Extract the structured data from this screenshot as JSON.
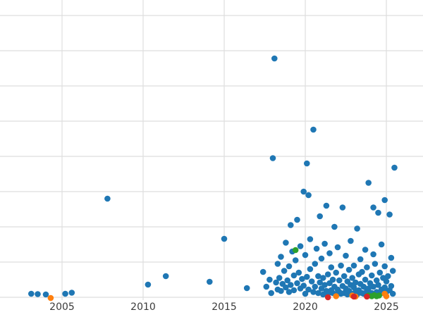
{
  "chart_data": {
    "type": "scatter",
    "title": "",
    "xlabel": "",
    "ylabel": "",
    "grid": true,
    "legend": "none",
    "axes": {
      "xlim": [
        2001.174,
        2027.26
      ],
      "ylim": [
        -0.08,
        8.44
      ],
      "x_ticks": [
        {
          "value": 2005,
          "label": "2005"
        },
        {
          "value": 2010,
          "label": "2010"
        },
        {
          "value": 2015,
          "label": "2015"
        },
        {
          "value": 2020,
          "label": "2020"
        },
        {
          "value": 2025,
          "label": "2025"
        }
      ],
      "y_gridline_values": [
        0,
        1,
        2,
        3,
        4,
        5,
        6,
        7,
        8
      ],
      "y_tick_labels_visible": false
    },
    "style": {
      "gridline_color": "#dedede",
      "background_color": "#ffffff",
      "marker_radius": 4.3,
      "tick_label_color": "#3b3b3b"
    },
    "series": [
      {
        "name": "blue",
        "color": "#1f77b4",
        "points": [
          [
            2003.1,
            0.1
          ],
          [
            2003.5,
            0.09
          ],
          [
            2004.0,
            0.08
          ],
          [
            2005.2,
            0.1
          ],
          [
            2005.6,
            0.13
          ],
          [
            2007.8,
            2.8
          ],
          [
            2010.3,
            0.36
          ],
          [
            2011.4,
            0.6
          ],
          [
            2014.1,
            0.44
          ],
          [
            2015.0,
            1.66
          ],
          [
            2016.4,
            0.26
          ],
          [
            2017.4,
            0.72
          ],
          [
            2017.6,
            0.3
          ],
          [
            2017.8,
            0.5
          ],
          [
            2017.9,
            0.12
          ],
          [
            2018.0,
            3.95
          ],
          [
            2018.1,
            6.78
          ],
          [
            2018.2,
            0.42
          ],
          [
            2018.3,
            0.22
          ],
          [
            2018.3,
            0.95
          ],
          [
            2018.4,
            0.55
          ],
          [
            2018.5,
            0.18
          ],
          [
            2018.5,
            1.15
          ],
          [
            2018.6,
            0.38
          ],
          [
            2018.7,
            0.75
          ],
          [
            2018.8,
            0.28
          ],
          [
            2018.8,
            1.55
          ],
          [
            2018.9,
            0.48
          ],
          [
            2019.0,
            0.15
          ],
          [
            2019.0,
            0.88
          ],
          [
            2019.1,
            2.05
          ],
          [
            2019.1,
            0.35
          ],
          [
            2019.2,
            1.3
          ],
          [
            2019.3,
            0.62
          ],
          [
            2019.3,
            0.2
          ],
          [
            2019.4,
            1.05
          ],
          [
            2019.5,
            2.2
          ],
          [
            2019.5,
            0.4
          ],
          [
            2019.6,
            0.7
          ],
          [
            2019.7,
            1.45
          ],
          [
            2019.7,
            0.25
          ],
          [
            2019.8,
            0.52
          ],
          [
            2019.9,
            3.0
          ],
          [
            2019.9,
            0.33
          ],
          [
            2020.0,
            1.2
          ],
          [
            2020.0,
            0.1
          ],
          [
            2020.1,
            3.8
          ],
          [
            2020.1,
            0.58
          ],
          [
            2020.2,
            2.9
          ],
          [
            2020.2,
            0.22
          ],
          [
            2020.3,
            0.8
          ],
          [
            2020.3,
            1.65
          ],
          [
            2020.4,
            0.45
          ],
          [
            2020.5,
            4.76
          ],
          [
            2020.5,
            0.15
          ],
          [
            2020.6,
            0.95
          ],
          [
            2020.6,
            0.3
          ],
          [
            2020.7,
            1.38
          ],
          [
            2020.8,
            0.6
          ],
          [
            2020.8,
            0.12
          ],
          [
            2020.9,
            2.3
          ],
          [
            2020.9,
            0.42
          ],
          [
            2021.0,
            0.25
          ],
          [
            2021.0,
            1.1
          ],
          [
            2021.1,
            0.55
          ],
          [
            2021.1,
            0.08
          ],
          [
            2021.2,
            0.35
          ],
          [
            2021.2,
            1.52
          ],
          [
            2021.3,
            2.6
          ],
          [
            2021.3,
            0.18
          ],
          [
            2021.4,
            0.65
          ],
          [
            2021.4,
            0.1
          ],
          [
            2021.5,
            0.4
          ],
          [
            2021.5,
            1.25
          ],
          [
            2021.6,
            0.2
          ],
          [
            2021.6,
            0.85
          ],
          [
            2021.7,
            0.12
          ],
          [
            2021.7,
            0.5
          ],
          [
            2021.8,
            2.0
          ],
          [
            2021.8,
            0.3
          ],
          [
            2021.9,
            0.08
          ],
          [
            2021.9,
            0.7
          ],
          [
            2022.0,
            0.22
          ],
          [
            2022.0,
            1.42
          ],
          [
            2022.1,
            0.15
          ],
          [
            2022.1,
            0.48
          ],
          [
            2022.2,
            0.9
          ],
          [
            2022.2,
            0.1
          ],
          [
            2022.3,
            2.55
          ],
          [
            2022.3,
            0.32
          ],
          [
            2022.4,
            0.6
          ],
          [
            2022.4,
            0.12
          ],
          [
            2022.5,
            1.18
          ],
          [
            2022.5,
            0.25
          ],
          [
            2022.6,
            0.45
          ],
          [
            2022.6,
            0.08
          ],
          [
            2022.7,
            0.78
          ],
          [
            2022.7,
            0.18
          ],
          [
            2022.8,
            1.6
          ],
          [
            2022.8,
            0.35
          ],
          [
            2022.9,
            0.1
          ],
          [
            2022.9,
            0.55
          ],
          [
            2023.0,
            0.28
          ],
          [
            2023.0,
            0.9
          ],
          [
            2023.1,
            0.15
          ],
          [
            2023.1,
            0.42
          ],
          [
            2023.2,
            1.95
          ],
          [
            2023.2,
            0.08
          ],
          [
            2023.3,
            0.65
          ],
          [
            2023.3,
            0.2
          ],
          [
            2023.4,
            1.08
          ],
          [
            2023.4,
            0.38
          ],
          [
            2023.5,
            0.12
          ],
          [
            2023.5,
            0.72
          ],
          [
            2023.6,
            0.3
          ],
          [
            2023.6,
            0.1
          ],
          [
            2023.7,
            1.35
          ],
          [
            2023.7,
            0.5
          ],
          [
            2023.8,
            0.18
          ],
          [
            2023.8,
            0.85
          ],
          [
            2023.9,
            3.25
          ],
          [
            2023.9,
            0.25
          ],
          [
            2024.0,
            0.4
          ],
          [
            2024.1,
            0.12
          ],
          [
            2024.1,
            0.62
          ],
          [
            2024.2,
            2.55
          ],
          [
            2024.2,
            1.22
          ],
          [
            2024.2,
            0.3
          ],
          [
            2024.3,
            0.08
          ],
          [
            2024.3,
            0.95
          ],
          [
            2024.4,
            0.48
          ],
          [
            2024.4,
            0.15
          ],
          [
            2024.5,
            2.4
          ],
          [
            2024.5,
            0.35
          ],
          [
            2024.6,
            0.7
          ],
          [
            2024.6,
            0.1
          ],
          [
            2024.7,
            1.5
          ],
          [
            2024.7,
            0.22
          ],
          [
            2024.8,
            0.55
          ],
          [
            2024.8,
            0.12
          ],
          [
            2024.9,
            2.76
          ],
          [
            2024.9,
            0.88
          ],
          [
            2024.9,
            0.28
          ],
          [
            2025.0,
            0.45
          ],
          [
            2025.0,
            0.15
          ],
          [
            2025.1,
            0.6
          ],
          [
            2025.2,
            2.35
          ],
          [
            2025.2,
            0.2
          ],
          [
            2025.3,
            1.12
          ],
          [
            2025.3,
            0.32
          ],
          [
            2025.4,
            0.75
          ],
          [
            2025.4,
            0.1
          ],
          [
            2025.5,
            3.68
          ]
        ]
      },
      {
        "name": "orange",
        "color": "#ff7f0e",
        "points": [
          [
            2004.3,
            -0.02
          ],
          [
            2021.9,
            0.03
          ],
          [
            2022.9,
            0.05
          ],
          [
            2023.1,
            0.02
          ],
          [
            2024.9,
            0.1
          ],
          [
            2025.0,
            0.03
          ]
        ]
      },
      {
        "name": "green",
        "color": "#2ca02c",
        "points": [
          [
            2019.4,
            1.34
          ],
          [
            2023.9,
            0.05
          ],
          [
            2024.1,
            0.03
          ],
          [
            2024.25,
            0.06
          ],
          [
            2024.4,
            0.03
          ],
          [
            2024.55,
            0.05
          ]
        ]
      },
      {
        "name": "red",
        "color": "#d62728",
        "points": [
          [
            2021.4,
            0.0
          ],
          [
            2023.0,
            0.02
          ],
          [
            2023.8,
            0.02
          ]
        ]
      }
    ]
  }
}
